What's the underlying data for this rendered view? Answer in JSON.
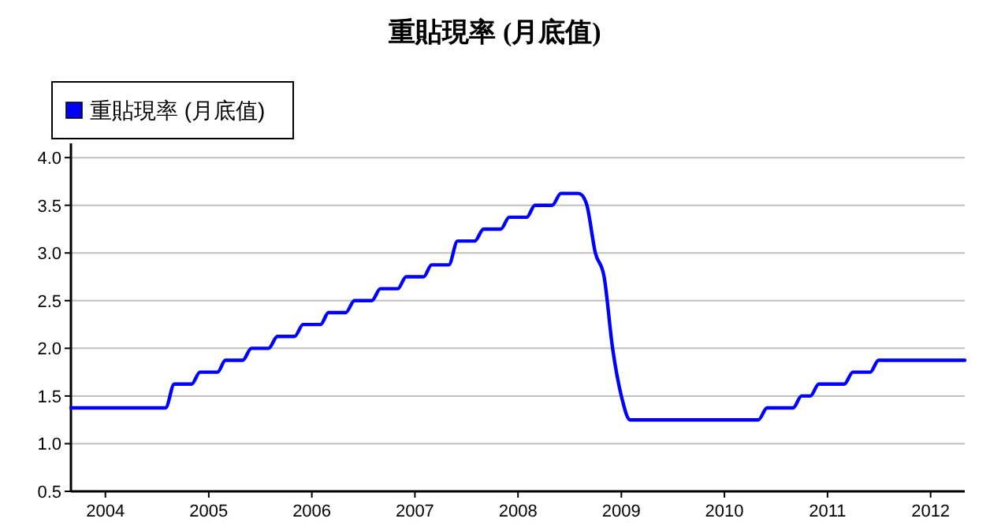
{
  "chart_data": {
    "type": "line",
    "title": "重貼現率 (月底值)",
    "x": [
      "2003-09",
      "2003-10",
      "2003-11",
      "2003-12",
      "2004-01",
      "2004-02",
      "2004-03",
      "2004-04",
      "2004-05",
      "2004-06",
      "2004-07",
      "2004-08",
      "2004-09",
      "2004-10",
      "2004-11",
      "2004-12",
      "2005-01",
      "2005-02",
      "2005-03",
      "2005-04",
      "2005-05",
      "2005-06",
      "2005-07",
      "2005-08",
      "2005-09",
      "2005-10",
      "2005-11",
      "2005-12",
      "2006-01",
      "2006-02",
      "2006-03",
      "2006-04",
      "2006-05",
      "2006-06",
      "2006-07",
      "2006-08",
      "2006-09",
      "2006-10",
      "2006-11",
      "2006-12",
      "2007-01",
      "2007-02",
      "2007-03",
      "2007-04",
      "2007-05",
      "2007-06",
      "2007-07",
      "2007-08",
      "2007-09",
      "2007-10",
      "2007-11",
      "2007-12",
      "2008-01",
      "2008-02",
      "2008-03",
      "2008-04",
      "2008-05",
      "2008-06",
      "2008-07",
      "2008-08",
      "2008-09",
      "2008-10",
      "2008-11",
      "2008-12",
      "2009-01",
      "2009-02",
      "2009-03",
      "2009-04",
      "2009-05",
      "2009-06",
      "2009-07",
      "2009-08",
      "2009-09",
      "2009-10",
      "2009-11",
      "2009-12",
      "2010-01",
      "2010-02",
      "2010-03",
      "2010-04",
      "2010-05",
      "2010-06",
      "2010-07",
      "2010-08",
      "2010-09",
      "2010-10",
      "2010-11",
      "2010-12",
      "2011-01",
      "2011-02",
      "2011-03",
      "2011-04",
      "2011-05",
      "2011-06",
      "2011-07",
      "2011-08",
      "2011-09",
      "2011-10",
      "2011-11",
      "2011-12",
      "2012-01",
      "2012-02",
      "2012-03",
      "2012-04",
      "2012-05"
    ],
    "series": [
      {
        "name": "重貼現率 (月底值)",
        "color": "#0000ff",
        "values": [
          1.375,
          1.375,
          1.375,
          1.375,
          1.375,
          1.375,
          1.375,
          1.375,
          1.375,
          1.375,
          1.375,
          1.375,
          1.625,
          1.625,
          1.625,
          1.75,
          1.75,
          1.75,
          1.875,
          1.875,
          1.875,
          2.0,
          2.0,
          2.0,
          2.125,
          2.125,
          2.125,
          2.25,
          2.25,
          2.25,
          2.375,
          2.375,
          2.375,
          2.5,
          2.5,
          2.5,
          2.625,
          2.625,
          2.625,
          2.75,
          2.75,
          2.75,
          2.875,
          2.875,
          2.875,
          3.125,
          3.125,
          3.125,
          3.25,
          3.25,
          3.25,
          3.375,
          3.375,
          3.375,
          3.5,
          3.5,
          3.5,
          3.625,
          3.625,
          3.625,
          3.5,
          3.0,
          2.75,
          2.0,
          1.5,
          1.25,
          1.25,
          1.25,
          1.25,
          1.25,
          1.25,
          1.25,
          1.25,
          1.25,
          1.25,
          1.25,
          1.25,
          1.25,
          1.25,
          1.25,
          1.25,
          1.375,
          1.375,
          1.375,
          1.375,
          1.5,
          1.5,
          1.625,
          1.625,
          1.625,
          1.625,
          1.75,
          1.75,
          1.75,
          1.875,
          1.875,
          1.875,
          1.875,
          1.875,
          1.875,
          1.875,
          1.875,
          1.875,
          1.875,
          1.875
        ]
      }
    ],
    "xlim": [
      "2003-09",
      "2012-05"
    ],
    "xticks": [
      {
        "value": "2004",
        "label": "2004"
      },
      {
        "value": "2005",
        "label": "2005"
      },
      {
        "value": "2006",
        "label": "2006"
      },
      {
        "value": "2007",
        "label": "2007"
      },
      {
        "value": "2008",
        "label": "2008"
      },
      {
        "value": "2009",
        "label": "2009"
      },
      {
        "value": "2010",
        "label": "2010"
      },
      {
        "value": "2011",
        "label": "2011"
      },
      {
        "value": "2012",
        "label": "2012"
      }
    ],
    "ylim": [
      0.5,
      4.15
    ],
    "yticks": [
      {
        "value": 0.5,
        "label": "0.5"
      },
      {
        "value": 1,
        "label": "1.0"
      },
      {
        "value": 1.5,
        "label": "1.5"
      },
      {
        "value": 2,
        "label": "2.0"
      },
      {
        "value": 2.5,
        "label": "2.5"
      },
      {
        "value": 3,
        "label": "3.0"
      },
      {
        "value": 3.5,
        "label": "3.5"
      },
      {
        "value": 4,
        "label": "4.0"
      }
    ],
    "grid": "y",
    "legend": "top left",
    "marker": "none",
    "line_style": "solid"
  }
}
